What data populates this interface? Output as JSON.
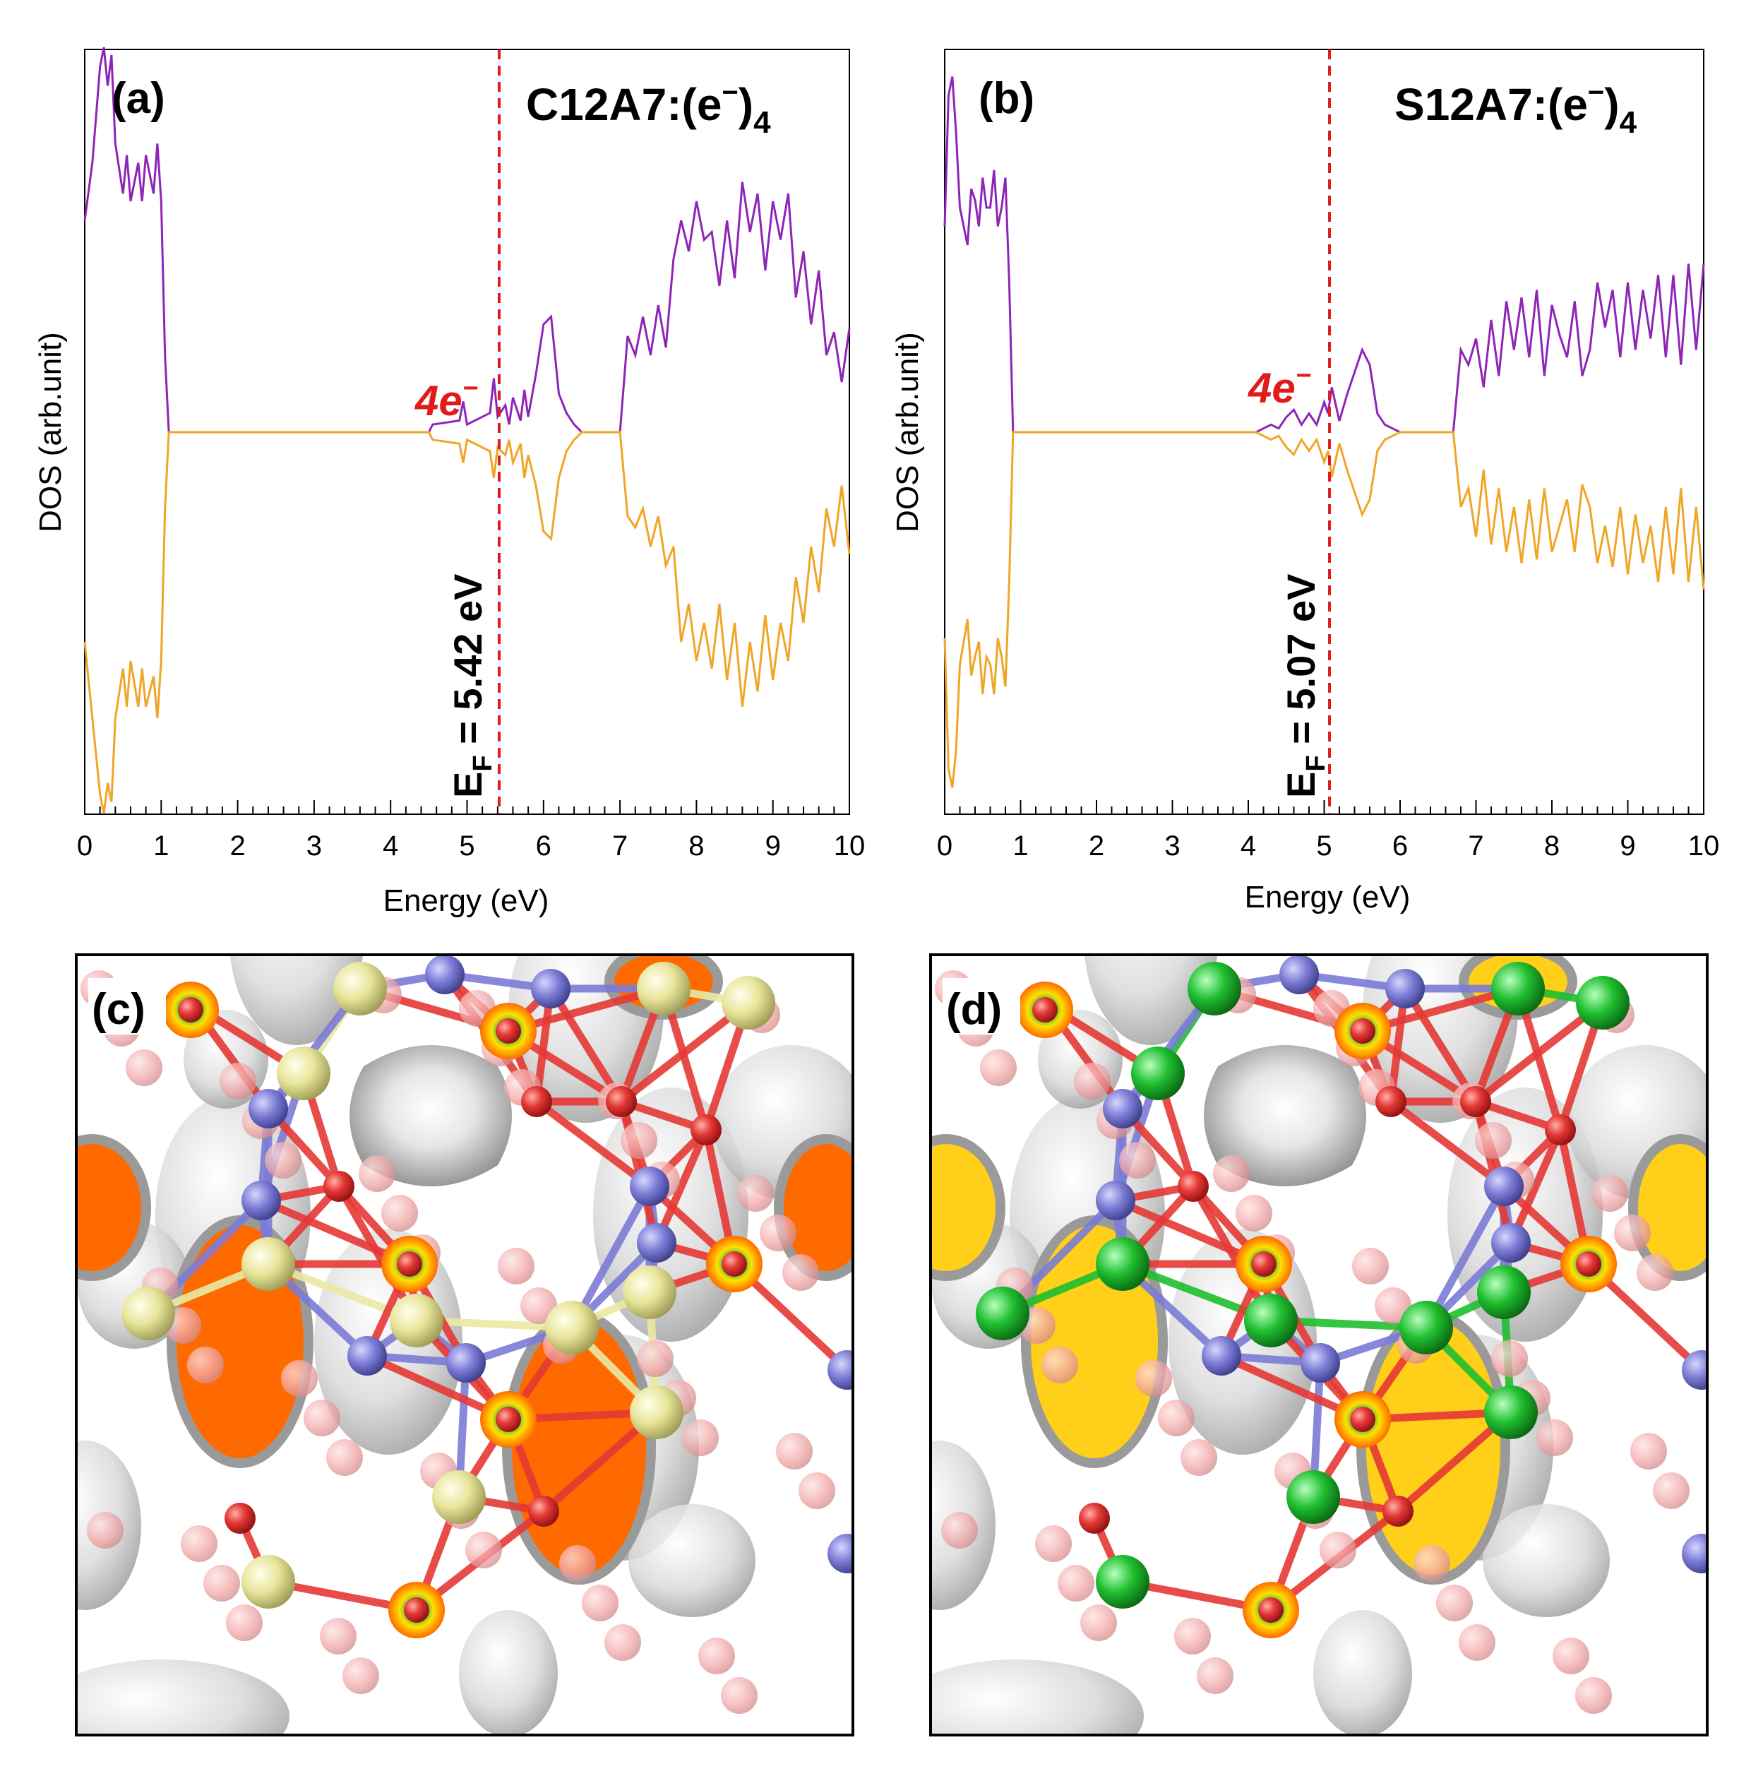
{
  "panels": {
    "a": {
      "label": "(a)",
      "formula": "C12A7:(e",
      "formula_sup": "−",
      "formula_close": ")",
      "formula_sub": "4",
      "fermi_label": "E",
      "fermi_sub": "F",
      "fermi_value": " = 5.42 eV",
      "peak_label": "4e",
      "peak_sup": "−"
    },
    "b": {
      "label": "(b)",
      "formula": "S12A7:(e",
      "formula_sup": "−",
      "formula_close": ")",
      "formula_sub": "4",
      "fermi_label": "E",
      "fermi_sub": "F",
      "fermi_value": " = 5.07 eV",
      "peak_label": "4e",
      "peak_sup": "−"
    },
    "c": {
      "label": "(c)"
    },
    "d": {
      "label": "(d)"
    }
  },
  "colors": {
    "spin_up": "#8e24b8",
    "spin_down": "#f0a526",
    "fermi_line": "#e01b1b",
    "peak_text": "#e01b1b",
    "oxygen": "#e53935",
    "oxygen_ghost": "#f5b5b5",
    "aluminium": "#7c7cd6",
    "calcium": "#ece9a4",
    "strontium": "#1fbf2f",
    "isosurface": "#c9c9c9",
    "cage_fill_c": "#ff6a00",
    "cage_fill_d": "#ffcf1a"
  },
  "chart_data": [
    {
      "type": "line",
      "panel": "a",
      "title": "C12A7:(e−)4",
      "xlabel": "Energy (eV)",
      "ylabel": "DOS (arb.unit)",
      "xlim": [
        0,
        10
      ],
      "x_ticks": [
        "0",
        "1",
        "2",
        "3",
        "4",
        "5",
        "6",
        "7",
        "8",
        "9",
        "10"
      ],
      "fermi_energy": 5.42,
      "annotation": "4e−",
      "series": [
        {
          "kind": "spin-up",
          "x": [
            0,
            0.1,
            0.2,
            0.25,
            0.3,
            0.35,
            0.4,
            0.5,
            0.55,
            0.6,
            0.7,
            0.75,
            0.8,
            0.9,
            0.95,
            1.0,
            1.05,
            1.1,
            4.5,
            4.55,
            4.9,
            4.95,
            5.0,
            5.3,
            5.35,
            5.4,
            5.5,
            5.55,
            5.6,
            5.7,
            5.75,
            5.8,
            5.9,
            6.0,
            6.1,
            6.2,
            6.3,
            6.4,
            6.5,
            7.0,
            7.1,
            7.2,
            7.3,
            7.4,
            7.5,
            7.6,
            7.7,
            7.8,
            7.9,
            8.0,
            8.1,
            8.2,
            8.3,
            8.4,
            8.5,
            8.6,
            8.7,
            8.8,
            8.9,
            9.0,
            9.1,
            9.2,
            9.3,
            9.4,
            9.5,
            9.6,
            9.7,
            9.8,
            9.9,
            10.0
          ],
          "y": [
            0.55,
            0.7,
            0.95,
            1.0,
            0.9,
            0.98,
            0.75,
            0.62,
            0.72,
            0.6,
            0.7,
            0.6,
            0.72,
            0.62,
            0.75,
            0.6,
            0.2,
            0,
            0,
            0.02,
            0.03,
            0.08,
            0.02,
            0.05,
            0.14,
            0.04,
            0.07,
            0.02,
            0.09,
            0.03,
            0.11,
            0.04,
            0.15,
            0.28,
            0.3,
            0.1,
            0.05,
            0.02,
            0,
            0,
            0.25,
            0.2,
            0.3,
            0.2,
            0.33,
            0.22,
            0.45,
            0.55,
            0.47,
            0.6,
            0.5,
            0.52,
            0.38,
            0.55,
            0.4,
            0.65,
            0.52,
            0.62,
            0.42,
            0.6,
            0.5,
            0.62,
            0.35,
            0.47,
            0.28,
            0.42,
            0.2,
            0.26,
            0.13,
            0.27
          ],
          "ylim": [
            0,
            1
          ]
        },
        {
          "kind": "spin-down",
          "x": [
            0,
            0.1,
            0.2,
            0.25,
            0.3,
            0.35,
            0.4,
            0.5,
            0.55,
            0.6,
            0.7,
            0.75,
            0.8,
            0.9,
            0.95,
            1.0,
            1.05,
            1.1,
            4.5,
            4.55,
            4.9,
            4.95,
            5.0,
            5.3,
            5.35,
            5.4,
            5.5,
            5.55,
            5.6,
            5.7,
            5.75,
            5.8,
            5.9,
            6.0,
            6.1,
            6.2,
            6.3,
            6.4,
            6.5,
            7.0,
            7.1,
            7.2,
            7.3,
            7.4,
            7.5,
            7.6,
            7.7,
            7.8,
            7.9,
            8.0,
            8.1,
            8.2,
            8.3,
            8.4,
            8.5,
            8.6,
            8.7,
            8.8,
            8.9,
            9.0,
            9.1,
            9.2,
            9.3,
            9.4,
            9.5,
            9.6,
            9.7,
            9.8,
            9.9,
            10.0
          ],
          "y": [
            -0.55,
            -0.75,
            -0.95,
            -1.0,
            -0.92,
            -0.97,
            -0.75,
            -0.62,
            -0.72,
            -0.6,
            -0.72,
            -0.62,
            -0.72,
            -0.64,
            -0.75,
            -0.6,
            -0.2,
            0,
            0,
            -0.02,
            -0.03,
            -0.08,
            -0.02,
            -0.05,
            -0.12,
            -0.04,
            -0.06,
            -0.02,
            -0.08,
            -0.03,
            -0.12,
            -0.06,
            -0.14,
            -0.26,
            -0.28,
            -0.12,
            -0.05,
            -0.02,
            0,
            0,
            -0.22,
            -0.25,
            -0.2,
            -0.3,
            -0.22,
            -0.35,
            -0.3,
            -0.55,
            -0.45,
            -0.6,
            -0.5,
            -0.62,
            -0.45,
            -0.65,
            -0.5,
            -0.72,
            -0.55,
            -0.68,
            -0.48,
            -0.65,
            -0.5,
            -0.6,
            -0.38,
            -0.5,
            -0.3,
            -0.42,
            -0.2,
            -0.3,
            -0.14,
            -0.32
          ],
          "ylim": [
            -1,
            0
          ]
        }
      ]
    },
    {
      "type": "line",
      "panel": "b",
      "title": "S12A7:(e−)4",
      "xlabel": "Energy (eV)",
      "ylabel": "DOS (arb.unit)",
      "xlim": [
        0,
        10
      ],
      "x_ticks": [
        "0",
        "1",
        "2",
        "3",
        "4",
        "5",
        "6",
        "7",
        "8",
        "9",
        "10"
      ],
      "fermi_energy": 5.07,
      "annotation": "4e−",
      "series": [
        {
          "kind": "spin-up",
          "x": [
            0,
            0.05,
            0.1,
            0.15,
            0.2,
            0.3,
            0.35,
            0.4,
            0.45,
            0.5,
            0.55,
            0.6,
            0.65,
            0.7,
            0.75,
            0.8,
            0.85,
            0.9,
            4.1,
            4.3,
            4.4,
            4.5,
            4.6,
            4.7,
            4.8,
            4.9,
            5.0,
            5.05,
            5.1,
            5.2,
            5.3,
            5.4,
            5.5,
            5.6,
            5.7,
            5.8,
            5.9,
            6.0,
            6.7,
            6.8,
            6.9,
            7.0,
            7.1,
            7.2,
            7.3,
            7.4,
            7.5,
            7.6,
            7.7,
            7.8,
            7.9,
            8.0,
            8.1,
            8.2,
            8.3,
            8.4,
            8.5,
            8.6,
            8.7,
            8.8,
            8.9,
            9.0,
            9.1,
            9.2,
            9.3,
            9.4,
            9.5,
            9.6,
            9.7,
            9.8,
            9.9,
            10.0
          ],
          "y": [
            0.55,
            0.9,
            0.95,
            0.8,
            0.6,
            0.5,
            0.65,
            0.62,
            0.55,
            0.68,
            0.6,
            0.6,
            0.7,
            0.55,
            0.6,
            0.68,
            0.4,
            0,
            0,
            0.02,
            0.01,
            0.04,
            0.06,
            0.02,
            0.05,
            0.02,
            0.08,
            0.05,
            0.12,
            0.03,
            0.1,
            0.16,
            0.22,
            0.18,
            0.05,
            0.02,
            0.01,
            0,
            0,
            0.22,
            0.18,
            0.25,
            0.12,
            0.3,
            0.15,
            0.35,
            0.22,
            0.36,
            0.2,
            0.38,
            0.15,
            0.34,
            0.26,
            0.2,
            0.35,
            0.15,
            0.22,
            0.4,
            0.28,
            0.38,
            0.2,
            0.4,
            0.22,
            0.38,
            0.25,
            0.42,
            0.2,
            0.42,
            0.18,
            0.45,
            0.22,
            0.45
          ],
          "ylim": [
            0,
            1
          ]
        },
        {
          "kind": "spin-down",
          "x": [
            0,
            0.05,
            0.1,
            0.15,
            0.2,
            0.3,
            0.35,
            0.4,
            0.45,
            0.5,
            0.55,
            0.6,
            0.65,
            0.7,
            0.75,
            0.8,
            0.85,
            0.9,
            4.1,
            4.3,
            4.4,
            4.5,
            4.6,
            4.7,
            4.8,
            4.9,
            5.0,
            5.05,
            5.1,
            5.2,
            5.3,
            5.4,
            5.5,
            5.6,
            5.7,
            5.8,
            5.9,
            6.0,
            6.7,
            6.8,
            6.9,
            7.0,
            7.1,
            7.2,
            7.3,
            7.4,
            7.5,
            7.6,
            7.7,
            7.8,
            7.9,
            8.0,
            8.1,
            8.2,
            8.3,
            8.4,
            8.5,
            8.6,
            8.7,
            8.8,
            8.9,
            9.0,
            9.1,
            9.2,
            9.3,
            9.4,
            9.5,
            9.6,
            9.7,
            9.8,
            9.9,
            10.0
          ],
          "y": [
            -0.55,
            -0.9,
            -0.95,
            -0.85,
            -0.62,
            -0.5,
            -0.65,
            -0.6,
            -0.56,
            -0.7,
            -0.6,
            -0.62,
            -0.7,
            -0.55,
            -0.6,
            -0.68,
            -0.4,
            0,
            0,
            -0.02,
            -0.01,
            -0.04,
            -0.06,
            -0.02,
            -0.05,
            -0.02,
            -0.08,
            -0.05,
            -0.12,
            -0.03,
            -0.1,
            -0.16,
            -0.22,
            -0.18,
            -0.05,
            -0.02,
            -0.01,
            0,
            0,
            -0.2,
            -0.15,
            -0.28,
            -0.1,
            -0.3,
            -0.15,
            -0.32,
            -0.2,
            -0.35,
            -0.18,
            -0.34,
            -0.15,
            -0.32,
            -0.25,
            -0.18,
            -0.32,
            -0.14,
            -0.2,
            -0.35,
            -0.25,
            -0.36,
            -0.2,
            -0.38,
            -0.22,
            -0.35,
            -0.25,
            -0.4,
            -0.2,
            -0.38,
            -0.15,
            -0.4,
            -0.2,
            -0.42
          ],
          "ylim": [
            -1,
            0
          ]
        }
      ]
    }
  ]
}
